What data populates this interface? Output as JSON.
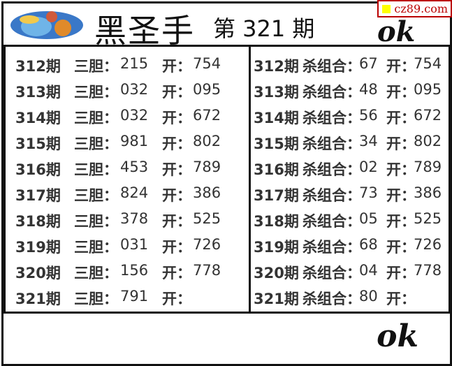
{
  "header": {
    "title": "黑圣手",
    "issue_label": "第 321 期",
    "watermark": "cz89.com",
    "signature": "ok"
  },
  "left": {
    "label": "三胆：",
    "open_label": "开：",
    "rows": [
      {
        "period": "312期",
        "value": "215",
        "open": "754"
      },
      {
        "period": "313期",
        "value": "032",
        "open": "095"
      },
      {
        "period": "314期",
        "value": "032",
        "open": "672"
      },
      {
        "period": "315期",
        "value": "981",
        "open": "802"
      },
      {
        "period": "316期",
        "value": "453",
        "open": "789"
      },
      {
        "period": "317期",
        "value": "824",
        "open": "386"
      },
      {
        "period": "318期",
        "value": "378",
        "open": "525"
      },
      {
        "period": "319期",
        "value": "031",
        "open": "726"
      },
      {
        "period": "320期",
        "value": "156",
        "open": "778"
      },
      {
        "period": "321期",
        "value": "791",
        "open": ""
      }
    ]
  },
  "right": {
    "label": "杀组合：",
    "open_label": "开：",
    "rows": [
      {
        "period": "312期",
        "value": "67",
        "open": "754"
      },
      {
        "period": "313期",
        "value": "48",
        "open": "095"
      },
      {
        "period": "314期",
        "value": "56",
        "open": "672"
      },
      {
        "period": "315期",
        "value": "34",
        "open": "802"
      },
      {
        "period": "316期",
        "value": "02",
        "open": "789"
      },
      {
        "period": "317期",
        "value": "73",
        "open": "386"
      },
      {
        "period": "318期",
        "value": "05",
        "open": "525"
      },
      {
        "period": "319期",
        "value": "68",
        "open": "726"
      },
      {
        "period": "320期",
        "value": "04",
        "open": "778"
      },
      {
        "period": "321期",
        "value": "80",
        "open": ""
      }
    ]
  }
}
